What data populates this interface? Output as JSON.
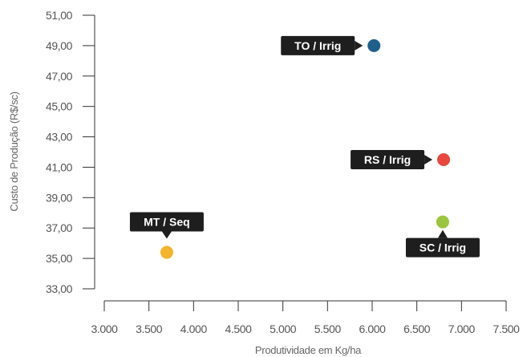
{
  "chart_data": {
    "type": "scatter",
    "title": "",
    "xlabel": "Produtividade em Kg/ha",
    "ylabel": "Custo de Produção (R$/sc)",
    "xlim": [
      3000,
      7500
    ],
    "ylim": [
      33,
      51
    ],
    "x_ticks": [
      3000,
      3500,
      4000,
      4500,
      5000,
      5500,
      6000,
      6500,
      7000,
      7500
    ],
    "x_tick_labels": [
      "3.000",
      "3.500",
      "4.000",
      "4.500",
      "5.000",
      "5.500",
      "6.000",
      "6.500",
      "7.000",
      "7.500"
    ],
    "y_ticks": [
      33,
      35,
      37,
      39,
      41,
      43,
      45,
      47,
      49,
      51
    ],
    "y_tick_labels": [
      "33,00",
      "35,00",
      "37,00",
      "39,00",
      "41,00",
      "43,00",
      "45,00",
      "47,00",
      "49,00",
      "51,00"
    ],
    "grid": false,
    "points": [
      {
        "label": "TO / Irrig",
        "x": 6020,
        "y": 49.0,
        "color": "#1f5f8b",
        "callout": "left"
      },
      {
        "label": "RS / Irrig",
        "x": 6800,
        "y": 41.5,
        "color": "#e8473c",
        "callout": "left"
      },
      {
        "label": "SC / Irrig",
        "x": 6790,
        "y": 37.4,
        "color": "#9bc53d",
        "callout": "below"
      },
      {
        "label": "MT / Seq",
        "x": 3700,
        "y": 35.4,
        "color": "#f2b52b",
        "callout": "above"
      }
    ]
  }
}
